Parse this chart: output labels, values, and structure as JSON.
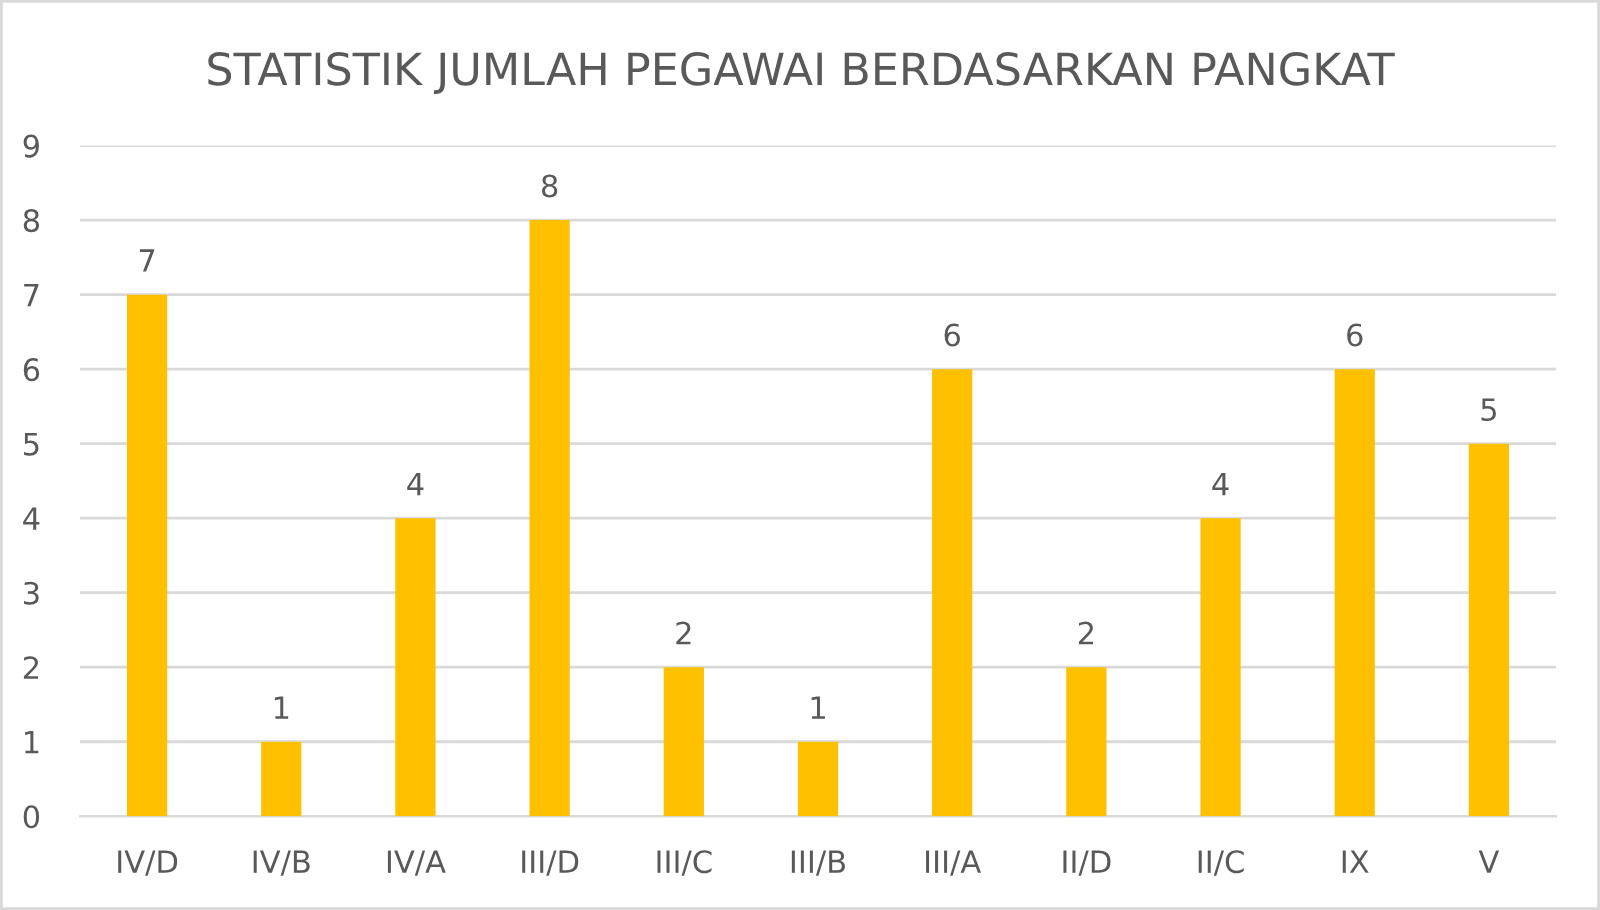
{
  "chart_data": {
    "type": "bar",
    "title": "STATISTIK JUMLAH PEGAWAI BERDASARKAN PANGKAT",
    "categories": [
      "IV/D",
      "IV/B",
      "IV/A",
      "III/D",
      "III/C",
      "III/B",
      "III/A",
      "II/D",
      "II/C",
      "IX",
      "V"
    ],
    "values": [
      7,
      1,
      4,
      8,
      2,
      1,
      6,
      2,
      4,
      6,
      5
    ],
    "color": "#ffc000",
    "ylim": [
      0,
      9
    ],
    "yticks": [
      0,
      1,
      2,
      3,
      4,
      5,
      6,
      7,
      8,
      9
    ],
    "grid": "y",
    "data_labels": true,
    "legend": false
  }
}
